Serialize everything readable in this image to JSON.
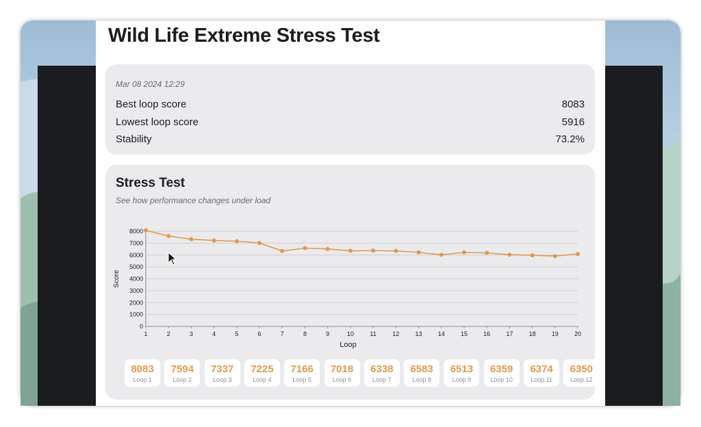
{
  "window": {
    "title": "Wild Life Extreme Stress Test"
  },
  "summary": {
    "timestamp": "Mar 08 2024 12:29",
    "rows": [
      {
        "label": "Best loop score",
        "value": "8083"
      },
      {
        "label": "Lowest loop score",
        "value": "5916"
      },
      {
        "label": "Stability",
        "value": "73.2%"
      }
    ]
  },
  "stress": {
    "title": "Stress Test",
    "subtitle": "See how performance changes under load"
  },
  "chart_data": {
    "type": "line",
    "xlabel": "Loop",
    "ylabel": "Score",
    "x": [
      1,
      2,
      3,
      4,
      5,
      6,
      7,
      8,
      9,
      10,
      11,
      12,
      13,
      14,
      15,
      16,
      17,
      18,
      19,
      20
    ],
    "series": [
      {
        "values": [
          8083,
          7594,
          7337,
          7225,
          7166,
          7018,
          6338,
          6583,
          6513,
          6359,
          6374,
          6350,
          6230,
          6020,
          6230,
          6180,
          6030,
          5980,
          5916,
          6090
        ]
      }
    ],
    "ylim": [
      0,
      8000
    ],
    "yticks": [
      "0",
      "1000",
      "2000",
      "3000",
      "4000",
      "5000",
      "6000",
      "7000",
      "8000"
    ],
    "xticks": [
      "1",
      "2",
      "3",
      "4",
      "5",
      "6",
      "7",
      "8",
      "9",
      "10",
      "11",
      "12",
      "13",
      "14",
      "15",
      "16",
      "17",
      "18",
      "19",
      "20"
    ],
    "grid": true,
    "color": "#e39a4a"
  },
  "loops": [
    {
      "value": "8083",
      "label": "Loop 1"
    },
    {
      "value": "7594",
      "label": "Loop 2"
    },
    {
      "value": "7337",
      "label": "Loop 3"
    },
    {
      "value": "7225",
      "label": "Loop 4"
    },
    {
      "value": "7166",
      "label": "Loop 5"
    },
    {
      "value": "7018",
      "label": "Loop 6"
    },
    {
      "value": "6338",
      "label": "Loop 7"
    },
    {
      "value": "6583",
      "label": "Loop 8"
    },
    {
      "value": "6513",
      "label": "Loop 9"
    },
    {
      "value": "6359",
      "label": "Loop 10"
    },
    {
      "value": "6374",
      "label": "Loop 11"
    },
    {
      "value": "6350",
      "label": "Loop 12"
    }
  ],
  "colors": {
    "accent": "#e39a4a",
    "card": "#ebebed"
  }
}
